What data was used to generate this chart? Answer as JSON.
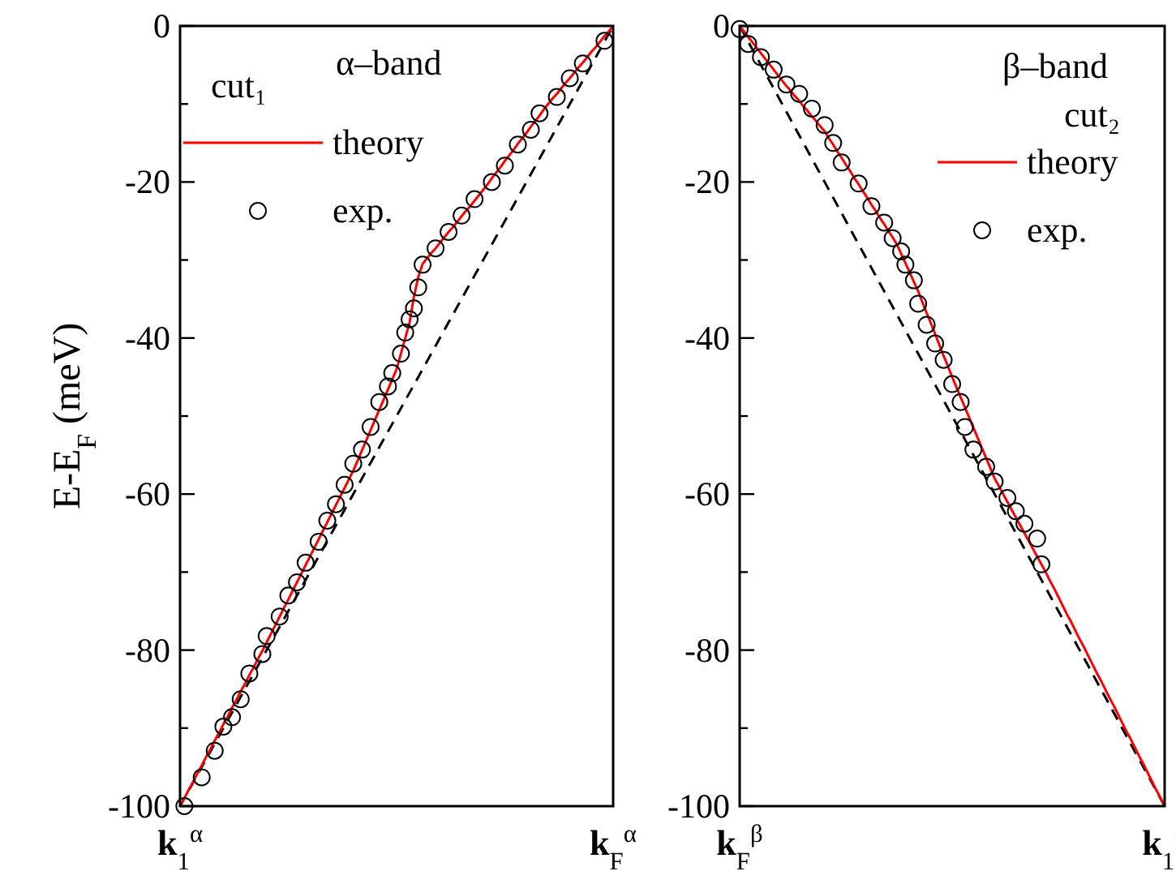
{
  "chart_data": [
    {
      "type": "line",
      "ylabel": "E-E$_{F}$ (meV)",
      "legend_title": "cut₁",
      "annotations": [
        "α–band"
      ],
      "legend": "top left",
      "ylim": [
        -100,
        0
      ],
      "yticks": [
        -100,
        {
          "value": -90,
          "label": null
        },
        -80,
        {
          "value": -70,
          "label": null
        },
        -60,
        {
          "value": -50,
          "label": null
        },
        -40,
        {
          "value": -30,
          "label": null
        },
        -20,
        {
          "value": -10,
          "label": null
        },
        0
      ],
      "categories": [
        "k$_{1}$$^{α}$",
        null,
        null,
        null,
        null,
        null,
        null,
        null,
        null,
        null,
        null,
        null,
        null,
        null,
        null,
        null,
        null,
        null,
        null,
        null,
        null,
        null,
        null,
        null,
        null,
        null,
        null,
        null,
        null,
        null,
        null,
        null,
        null,
        null,
        null,
        null,
        null,
        null,
        null,
        null,
        null,
        null,
        null,
        null,
        null,
        null,
        null,
        null,
        null,
        null,
        null,
        null,
        null,
        null,
        null,
        null,
        null,
        null,
        null,
        null,
        null,
        null,
        null,
        null,
        null,
        null,
        null,
        null,
        null,
        null,
        null,
        null,
        null,
        null,
        null,
        null,
        null,
        null,
        null,
        null,
        null,
        null,
        null,
        null,
        null,
        null,
        null,
        null,
        null,
        null,
        null,
        null,
        null,
        null,
        null,
        null,
        null,
        null,
        null,
        null,
        "k$_{F}$$^{α}$"
      ],
      "series": [
        {
          "color": "#000000",
          "line_style": "dashed",
          "values": [
            -100,
            -99,
            -98,
            -97,
            -96,
            -95,
            -94,
            -93,
            -92,
            -91,
            -90,
            -89,
            -88,
            -87,
            -86,
            -85,
            -84,
            -83,
            -82,
            -81,
            -80,
            -79,
            -78,
            -77,
            -76,
            -75,
            -74,
            -73,
            -72,
            -71,
            -70,
            -69,
            -68,
            -67,
            -66,
            -65,
            -64,
            -63,
            -62,
            -61,
            -60,
            -59,
            -58,
            -57,
            -56,
            -55,
            -54,
            -53,
            -52,
            -51,
            -50,
            -49,
            -48,
            -47,
            -46,
            -45,
            -44,
            -43,
            -42,
            -41,
            -40,
            -39,
            -38,
            -37,
            -36,
            -35,
            -34,
            -33,
            -32,
            -31,
            -30,
            -29,
            -28,
            -27,
            -26,
            -25,
            -24,
            -23,
            -22,
            -21,
            -20,
            -19,
            -18,
            -17,
            -16,
            -15,
            -14,
            -13,
            -12,
            -11,
            -10,
            -9,
            -8,
            -7,
            -6,
            -5,
            -4,
            -3,
            -2,
            -1,
            0
          ]
        },
        {
          "name": "theory",
          "color": "#ff0000",
          "values": [
            -100,
            -99,
            -97.9,
            -96.9,
            -95.8,
            -94.8,
            -93.7,
            -92.7,
            -91.6,
            -90.6,
            -89.5,
            -88.5,
            -87.4,
            -86.4,
            -85.3,
            -84.3,
            -83.2,
            -82.2,
            -81.1,
            -80.1,
            -79,
            -77.9,
            -76.8,
            -75.7,
            -74.6,
            -73.5,
            -72.4,
            -71.3,
            -70.2,
            -69.1,
            -68,
            -66.9,
            -65.8,
            -64.7,
            -63.6,
            -62.5,
            -61.4,
            -60.3,
            -59.2,
            -58.1,
            -57,
            -55.7,
            -54.4,
            -53.1,
            -51.8,
            -50.5,
            -49.2,
            -47.9,
            -46.6,
            -45.3,
            -44,
            -42,
            -40,
            -38,
            -34.7,
            -32.2,
            -30.5,
            -29.8,
            -29.1,
            -28.5,
            -27.8,
            -27.1,
            -26.4,
            -25.8,
            -25.1,
            -24.4,
            -23.7,
            -23.1,
            -22.4,
            -21.7,
            -21,
            -20.3,
            -19.5,
            -18.8,
            -18.1,
            -17.3,
            -16.6,
            -15.9,
            -15.1,
            -14.4,
            -13.7,
            -12.9,
            -12.2,
            -11.5,
            -10.7,
            -10,
            -9.3,
            -8.7,
            -8,
            -7.3,
            -6.7,
            -6,
            -5.3,
            -4.7,
            -4,
            -3.3,
            -2.7,
            -2,
            -1.3,
            -0.7,
            0
          ]
        },
        {
          "type": "scatter",
          "name": "exp.",
          "color": "#000000",
          "marker": "circle",
          "values": [
            null,
            -100,
            null,
            null,
            null,
            -96.3,
            null,
            null,
            -92.9,
            null,
            -89.8,
            null,
            -88.6,
            null,
            -86.3,
            null,
            -83,
            null,
            null,
            -80.5,
            -78.2,
            null,
            null,
            -75.7,
            null,
            -73,
            null,
            -71.3,
            null,
            -68.8,
            null,
            null,
            -66.1,
            null,
            -63.4,
            null,
            -61.3,
            null,
            -58.8,
            null,
            -56.1,
            null,
            -54.3,
            null,
            -51.4,
            null,
            -48.2,
            null,
            -46.2,
            -44.5,
            null,
            -42,
            -39.3,
            -37.6,
            -36.2,
            -33.5,
            -30.6,
            null,
            null,
            -28.5,
            null,
            null,
            -26.4,
            null,
            null,
            -24.3,
            null,
            null,
            -22.2,
            null,
            null,
            null,
            -20,
            null,
            null,
            -17.9,
            null,
            null,
            -15.2,
            null,
            null,
            -13.3,
            null,
            -11.2,
            null,
            null,
            null,
            -9.1,
            null,
            null,
            -6.7,
            null,
            null,
            -4.8,
            null,
            null,
            null,
            null,
            -1.9,
            null,
            null
          ]
        }
      ]
    },
    {
      "type": "line",
      "legend_title": "cut₂",
      "annotations": [
        "β–band"
      ],
      "legend": "top right",
      "ylim": [
        -100,
        0
      ],
      "yticks": [
        -100,
        {
          "value": -90,
          "label": null
        },
        -80,
        {
          "value": -70,
          "label": null
        },
        -60,
        {
          "value": -50,
          "label": null
        },
        -40,
        {
          "value": -30,
          "label": null
        },
        -20,
        {
          "value": -10,
          "label": null
        },
        0
      ],
      "categories": [
        "k$_{F}$$^{β}$",
        null,
        null,
        null,
        null,
        null,
        null,
        null,
        null,
        null,
        null,
        null,
        null,
        null,
        null,
        null,
        null,
        null,
        null,
        null,
        null,
        null,
        null,
        null,
        null,
        null,
        null,
        null,
        null,
        null,
        null,
        null,
        null,
        null,
        null,
        null,
        null,
        null,
        null,
        null,
        null,
        null,
        null,
        null,
        null,
        null,
        null,
        null,
        null,
        null,
        null,
        null,
        null,
        null,
        null,
        null,
        null,
        null,
        null,
        null,
        null,
        null,
        null,
        null,
        null,
        null,
        null,
        null,
        null,
        null,
        null,
        null,
        null,
        null,
        null,
        null,
        null,
        null,
        null,
        null,
        null,
        null,
        null,
        null,
        null,
        null,
        null,
        null,
        null,
        null,
        null,
        null,
        null,
        null,
        null,
        null,
        null,
        null,
        null,
        null,
        "k$_{1}$$^{β}$"
      ],
      "series": [
        {
          "color": "#000000",
          "line_style": "dashed",
          "values": [
            0,
            -1,
            -2,
            -3,
            -4,
            -5,
            -6,
            -7,
            -8,
            -9,
            -10,
            -11,
            -12,
            -13,
            -14,
            -15,
            -16,
            -17,
            -18,
            -19,
            -20,
            -21,
            -22,
            -23,
            -24,
            -25,
            -26,
            -27,
            -28,
            -29,
            -30,
            -31,
            -32,
            -33,
            -34,
            -35,
            -36,
            -37,
            -38,
            -39,
            -40,
            -41,
            -42,
            -43,
            -44,
            -45,
            -46,
            -47,
            -48,
            -49,
            -50,
            -51,
            -52,
            -53,
            -54,
            -55,
            -56,
            -57,
            -58,
            -59,
            -60,
            -61,
            -62,
            -63,
            -64,
            -65,
            -66,
            -67,
            -68,
            -69,
            -70,
            -71,
            -72,
            -73,
            -74,
            -75,
            -76,
            -77,
            -78,
            -79,
            -80,
            -81,
            -82,
            -83,
            -84,
            -85,
            -86,
            -87,
            -88,
            -89,
            -90,
            -91,
            -92,
            -93,
            -94,
            -95,
            -96,
            -97,
            -98,
            -99,
            -100
          ]
        },
        {
          "name": "theory",
          "color": "#ff0000",
          "values": [
            0,
            -0.7,
            -1.4,
            -2.1,
            -2.8,
            -3.5,
            -4.2,
            -4.9,
            -5.6,
            -6.3,
            -7,
            -7.7,
            -8.3,
            -9,
            -9.6,
            -10.3,
            -10.9,
            -11.6,
            -12.2,
            -12.9,
            -13.5,
            -14.4,
            -15.2,
            -16.1,
            -16.9,
            -17.8,
            -18.6,
            -19.5,
            -20.3,
            -21.2,
            -22,
            -22.9,
            -23.7,
            -24.6,
            -25.4,
            -26.3,
            -27.1,
            -28,
            -29.2,
            -30.4,
            -31.6,
            -32.8,
            -34,
            -35.4,
            -36.8,
            -38.1,
            -39.5,
            -40.9,
            -42.3,
            -43.6,
            -45,
            -46.3,
            -47.6,
            -48.9,
            -50.2,
            -51.5,
            -52.8,
            -54.1,
            -55.4,
            -56.7,
            -58,
            -59,
            -60,
            -61,
            -62,
            -63,
            -64,
            -65,
            -66,
            -67,
            -68,
            -69,
            -70,
            -71.1,
            -72.1,
            -73.2,
            -74.3,
            -75.4,
            -76.4,
            -77.5,
            -78.6,
            -79.6,
            -80.7,
            -81.8,
            -82.9,
            -83.9,
            -85,
            -86.1,
            -87.1,
            -88.2,
            -89.3,
            -90.4,
            -91.4,
            -92.5,
            -93.6,
            -94.6,
            -95.7,
            -96.8,
            -97.9,
            -98.9,
            -100
          ]
        },
        {
          "type": "scatter",
          "name": "exp.",
          "color": "#000000",
          "marker": "circle",
          "values": [
            -0.4,
            null,
            -2.3,
            null,
            null,
            -4,
            null,
            null,
            -5.6,
            null,
            null,
            -7.5,
            null,
            null,
            -8.7,
            null,
            null,
            -10.6,
            null,
            null,
            -12.7,
            null,
            -15,
            null,
            -17.5,
            null,
            null,
            null,
            -20.2,
            null,
            null,
            -23.1,
            null,
            null,
            -25.2,
            null,
            -27.2,
            null,
            -28.9,
            -30.6,
            null,
            -32.6,
            -35.6,
            null,
            -38.3,
            null,
            -40.7,
            null,
            -42.8,
            null,
            -45.9,
            null,
            -48.2,
            -51.4,
            null,
            -54.3,
            null,
            null,
            -56.5,
            null,
            -58.4,
            null,
            null,
            -60.5,
            null,
            -62.2,
            null,
            -63.8,
            null,
            null,
            -65.7,
            -69,
            null,
            null,
            null,
            null,
            null,
            null,
            null,
            null,
            null,
            null,
            null,
            null,
            null,
            null,
            null,
            null,
            null,
            null,
            null,
            null,
            null,
            null,
            null,
            null,
            null,
            null,
            null,
            null,
            null
          ]
        }
      ]
    }
  ]
}
